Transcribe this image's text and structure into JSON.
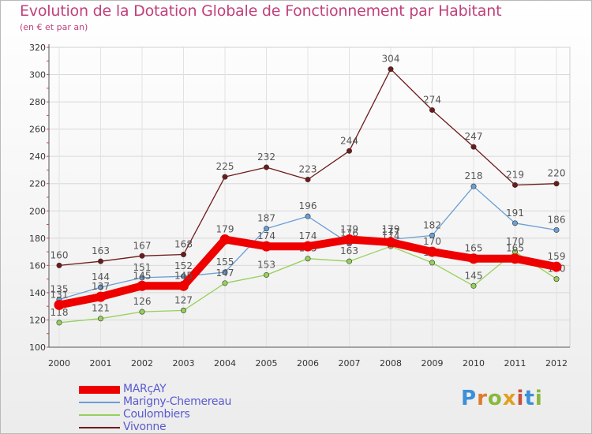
{
  "header": {
    "title": "Evolution de la Dotation Globale de Fonctionnement par Habitant",
    "subtitle": "(en € et par an)"
  },
  "brand": {
    "name": "ProXiti",
    "letters": [
      "P",
      "r",
      "o",
      "x",
      "i",
      "t",
      "i"
    ],
    "colors": [
      "#3c8fd8",
      "#e07a2e",
      "#8ab83c",
      "#e0a020",
      "#c8503c",
      "#3c8fd8",
      "#8ab83c"
    ]
  },
  "chart_data": {
    "type": "line",
    "title": "Evolution de la Dotation Globale de Fonctionnement par Habitant",
    "subtitle": "(en € et par an)",
    "xlabel": "",
    "ylabel": "",
    "categories": [
      "2000",
      "2001",
      "2002",
      "2003",
      "2004",
      "2005",
      "2006",
      "2007",
      "2008",
      "2009",
      "2010",
      "2011",
      "2012"
    ],
    "ylim": [
      100,
      320
    ],
    "yticks": [
      100,
      120,
      140,
      160,
      180,
      200,
      220,
      240,
      260,
      280,
      300,
      320
    ],
    "grid": true,
    "legend_position": "bottom-left",
    "series": [
      {
        "name": "Vivonne",
        "color": "#6e1a1a",
        "style": "thin",
        "values": [
          160,
          163,
          167,
          168,
          225,
          232,
          223,
          244,
          304,
          274,
          247,
          219,
          220
        ],
        "labels": [
          "160",
          "163",
          "167",
          "168",
          "225",
          "232",
          "223",
          "244",
          "304",
          "274",
          "247",
          "219",
          "220"
        ]
      },
      {
        "name": "Marigny-Chemereau",
        "color": "#6a9fd4",
        "style": "thin",
        "values": [
          135,
          144,
          151,
          152,
          155,
          187,
          196,
          176,
          179,
          182,
          218,
          191,
          186
        ],
        "labels": [
          "135",
          "144",
          "151",
          "152",
          "155",
          "187",
          "196",
          "176",
          "179",
          "182",
          "218",
          "191",
          "186"
        ]
      },
      {
        "name": "Coulombiers",
        "color": "#96d05a",
        "style": "thin",
        "values": [
          118,
          121,
          126,
          127,
          147,
          153,
          165,
          163,
          174,
          162,
          145,
          170,
          150
        ],
        "labels": [
          "118",
          "121",
          "126",
          "127",
          "147",
          "153",
          "165",
          "163",
          "174",
          "162",
          "145",
          "170",
          "150"
        ]
      },
      {
        "name": "MARçAY",
        "color": "#ee0000",
        "style": "thick",
        "values": [
          131,
          137,
          145,
          145,
          179,
          174,
          174,
          179,
          177,
          170,
          165,
          165,
          159
        ],
        "labels": [
          "131",
          "137",
          "145",
          "145",
          "179",
          "174",
          "174",
          "179",
          "177",
          "170",
          "165",
          "165",
          "159"
        ]
      }
    ],
    "legend_order": [
      "MARçAY",
      "Marigny-Chemereau",
      "Coulombiers",
      "Vivonne"
    ]
  }
}
